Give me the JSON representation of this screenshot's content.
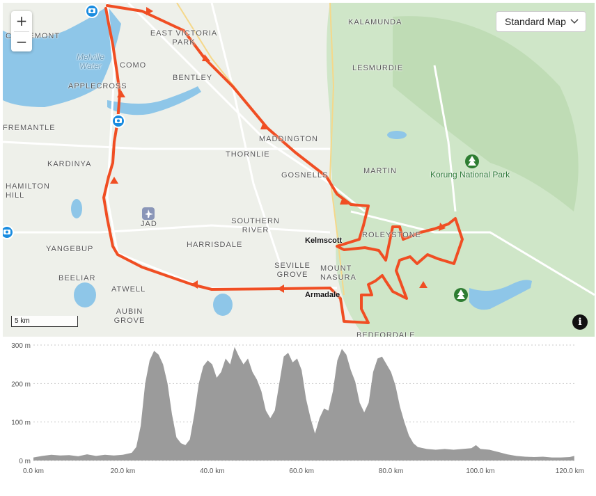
{
  "map": {
    "zoom_in": "+",
    "zoom_out": "−",
    "map_type": "Standard Map",
    "scale_label": "5 km",
    "info_label": "i",
    "labels": [
      {
        "text": "CLAREMONT",
        "kind": "suburb"
      },
      {
        "text": "Melville Water",
        "kind": "water"
      },
      {
        "text": "EAST VICTORIA PARK",
        "kind": "suburb"
      },
      {
        "text": "KALAMUNDA",
        "kind": "suburb"
      },
      {
        "text": "COMO",
        "kind": "suburb"
      },
      {
        "text": "BENTLEY",
        "kind": "suburb"
      },
      {
        "text": "LESMURDIE",
        "kind": "suburb"
      },
      {
        "text": "APPLECROSS",
        "kind": "suburb"
      },
      {
        "text": "FREMANTLE",
        "kind": "suburb"
      },
      {
        "text": "MADDINGTON",
        "kind": "suburb"
      },
      {
        "text": "KARDINYA",
        "kind": "suburb"
      },
      {
        "text": "THORNLIE",
        "kind": "suburb"
      },
      {
        "text": "MARTIN",
        "kind": "suburb"
      },
      {
        "text": "Korung National Park",
        "kind": "park"
      },
      {
        "text": "GOSNELLS",
        "kind": "suburb"
      },
      {
        "text": "HAMILTON HILL",
        "kind": "suburb"
      },
      {
        "text": "JAD",
        "kind": "airport"
      },
      {
        "text": "SOUTHERN RIVER",
        "kind": "suburb"
      },
      {
        "text": "ROLEYSTONE",
        "kind": "suburb"
      },
      {
        "text": "Kelmscott",
        "kind": "town"
      },
      {
        "text": "YANGEBUP",
        "kind": "suburb"
      },
      {
        "text": "HARRISDALE",
        "kind": "suburb"
      },
      {
        "text": "BEELIAR",
        "kind": "suburb"
      },
      {
        "text": "SEVILLE GROVE",
        "kind": "suburb"
      },
      {
        "text": "MOUNT NASURA",
        "kind": "suburb"
      },
      {
        "text": "ATWELL",
        "kind": "suburb"
      },
      {
        "text": "Armadale",
        "kind": "town"
      },
      {
        "text": "AUBIN GROVE",
        "kind": "suburb"
      },
      {
        "text": "BEDFORDALE",
        "kind": "suburb"
      }
    ]
  },
  "route": {
    "color": "#f04e23"
  },
  "elevation": {
    "unit_x": "km",
    "unit_y": "m",
    "y_ticks": [
      "0 m",
      "100 m",
      "200 m",
      "300 m"
    ],
    "x_ticks": [
      "0.0 km",
      "20.0 km",
      "40.0 km",
      "60.0 km",
      "80.0 km",
      "100.0 km",
      "120.0 km"
    ],
    "fill_color": "#9b9b9b",
    "profile": [
      [
        0,
        8
      ],
      [
        2,
        12
      ],
      [
        4,
        15
      ],
      [
        6,
        13
      ],
      [
        8,
        14
      ],
      [
        10,
        11
      ],
      [
        12,
        16
      ],
      [
        14,
        12
      ],
      [
        16,
        15
      ],
      [
        18,
        13
      ],
      [
        20,
        15
      ],
      [
        22,
        20
      ],
      [
        23,
        35
      ],
      [
        24,
        90
      ],
      [
        25,
        200
      ],
      [
        26,
        260
      ],
      [
        27,
        285
      ],
      [
        28,
        275
      ],
      [
        29,
        250
      ],
      [
        30,
        200
      ],
      [
        31,
        120
      ],
      [
        32,
        60
      ],
      [
        33,
        45
      ],
      [
        34,
        40
      ],
      [
        35,
        55
      ],
      [
        36,
        120
      ],
      [
        37,
        200
      ],
      [
        38,
        245
      ],
      [
        39,
        260
      ],
      [
        40,
        250
      ],
      [
        41,
        215
      ],
      [
        42,
        230
      ],
      [
        43,
        265
      ],
      [
        44,
        250
      ],
      [
        45,
        295
      ],
      [
        46,
        270
      ],
      [
        47,
        250
      ],
      [
        48,
        265
      ],
      [
        49,
        230
      ],
      [
        50,
        210
      ],
      [
        51,
        180
      ],
      [
        52,
        130
      ],
      [
        53,
        110
      ],
      [
        54,
        130
      ],
      [
        55,
        200
      ],
      [
        56,
        270
      ],
      [
        57,
        280
      ],
      [
        58,
        255
      ],
      [
        59,
        265
      ],
      [
        60,
        235
      ],
      [
        61,
        160
      ],
      [
        62,
        110
      ],
      [
        63,
        70
      ],
      [
        64,
        110
      ],
      [
        65,
        135
      ],
      [
        66,
        130
      ],
      [
        67,
        180
      ],
      [
        68,
        260
      ],
      [
        69,
        290
      ],
      [
        70,
        275
      ],
      [
        71,
        235
      ],
      [
        72,
        205
      ],
      [
        73,
        150
      ],
      [
        74,
        125
      ],
      [
        75,
        150
      ],
      [
        76,
        230
      ],
      [
        77,
        265
      ],
      [
        78,
        270
      ],
      [
        79,
        250
      ],
      [
        80,
        230
      ],
      [
        81,
        195
      ],
      [
        82,
        140
      ],
      [
        83,
        100
      ],
      [
        84,
        65
      ],
      [
        85,
        45
      ],
      [
        86,
        35
      ],
      [
        88,
        30
      ],
      [
        90,
        28
      ],
      [
        92,
        30
      ],
      [
        94,
        28
      ],
      [
        96,
        30
      ],
      [
        98,
        32
      ],
      [
        99,
        40
      ],
      [
        100,
        30
      ],
      [
        102,
        28
      ],
      [
        104,
        22
      ],
      [
        106,
        16
      ],
      [
        108,
        12
      ],
      [
        110,
        10
      ],
      [
        112,
        9
      ],
      [
        114,
        10
      ],
      [
        116,
        8
      ],
      [
        118,
        8
      ],
      [
        120,
        9
      ],
      [
        121,
        12
      ]
    ]
  }
}
